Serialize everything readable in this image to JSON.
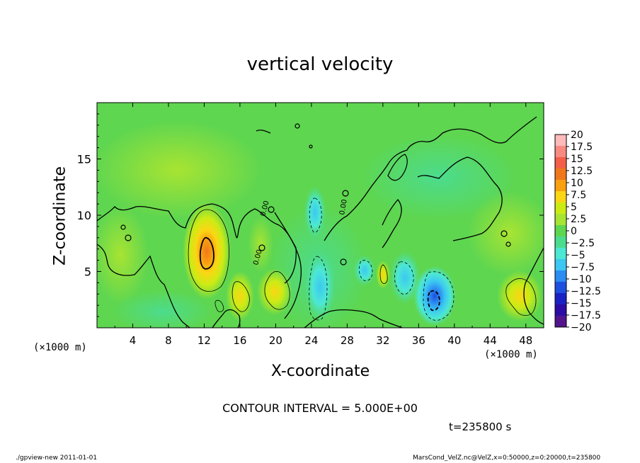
{
  "chart_data": {
    "type": "heatmap",
    "title": "vertical velocity",
    "xlabel": "X-coordinate",
    "ylabel": "Z-coordinate",
    "x_unit_label": "(×1000 m)",
    "x_ticks": [
      4,
      8,
      12,
      16,
      20,
      24,
      28,
      32,
      36,
      40,
      44,
      48
    ],
    "xlim": [
      0,
      50
    ],
    "y_ticks": [
      5,
      10,
      15
    ],
    "ylim": [
      0,
      20
    ],
    "colorbar": {
      "levels": [
        "20",
        "17.5",
        "15",
        "12.5",
        "10",
        "7.5",
        "5",
        "2.5",
        "0",
        "−2.5",
        "−5",
        "−7.5",
        "−10",
        "−12.5",
        "−15",
        "−17.5",
        "−20"
      ],
      "colors": [
        "#fcbaba",
        "#f88a82",
        "#f45f4a",
        "#f0781c",
        "#f8a010",
        "#fbd614",
        "#cceb15",
        "#a8e432",
        "#5ed650",
        "#4cdc8e",
        "#4ce8d4",
        "#3cc8f2",
        "#2c8cf2",
        "#1e50e0",
        "#1a22c4",
        "#2c0ca4",
        "#52148c"
      ]
    },
    "features": [
      {
        "kind": "updraft",
        "x": 12,
        "z": 6.5,
        "peak": 12.5
      },
      {
        "kind": "updraft",
        "x": 15.7,
        "z": 2.7,
        "peak": 6
      },
      {
        "kind": "updraft",
        "x": 19.5,
        "z": 3.2,
        "peak": 5
      },
      {
        "kind": "updraft",
        "x": 46.5,
        "z": 3.0,
        "peak": 6
      },
      {
        "kind": "updraft",
        "x": 31.8,
        "z": 4.6,
        "peak": 5
      },
      {
        "kind": "downdraft",
        "x": 37.8,
        "z": 2.5,
        "peak": -12
      },
      {
        "kind": "downdraft",
        "x": 34.4,
        "z": 4.5,
        "peak": -6
      },
      {
        "kind": "downdraft",
        "x": 24.3,
        "z": 4.0,
        "peak": -6
      },
      {
        "kind": "downdraft",
        "x": 25.0,
        "z": 10.0,
        "peak": -4
      },
      {
        "kind": "downdraft",
        "x": 29.5,
        "z": 5.0,
        "peak": -5
      }
    ],
    "contour_interval": "CONTOUR INTERVAL = 5.000E+00",
    "contour_labels": [
      "0.00",
      "0.00",
      "0.00"
    ]
  },
  "annotations": {
    "time": "t=235800 s",
    "footer_left": "./gpview-new   2011-01-01",
    "footer_right": "MarsCond_VelZ.nc@VelZ,x=0:50000,z=0:20000,t=235800"
  },
  "colors": {
    "background_field": "#5ed650",
    "contour_line": "#000000"
  }
}
